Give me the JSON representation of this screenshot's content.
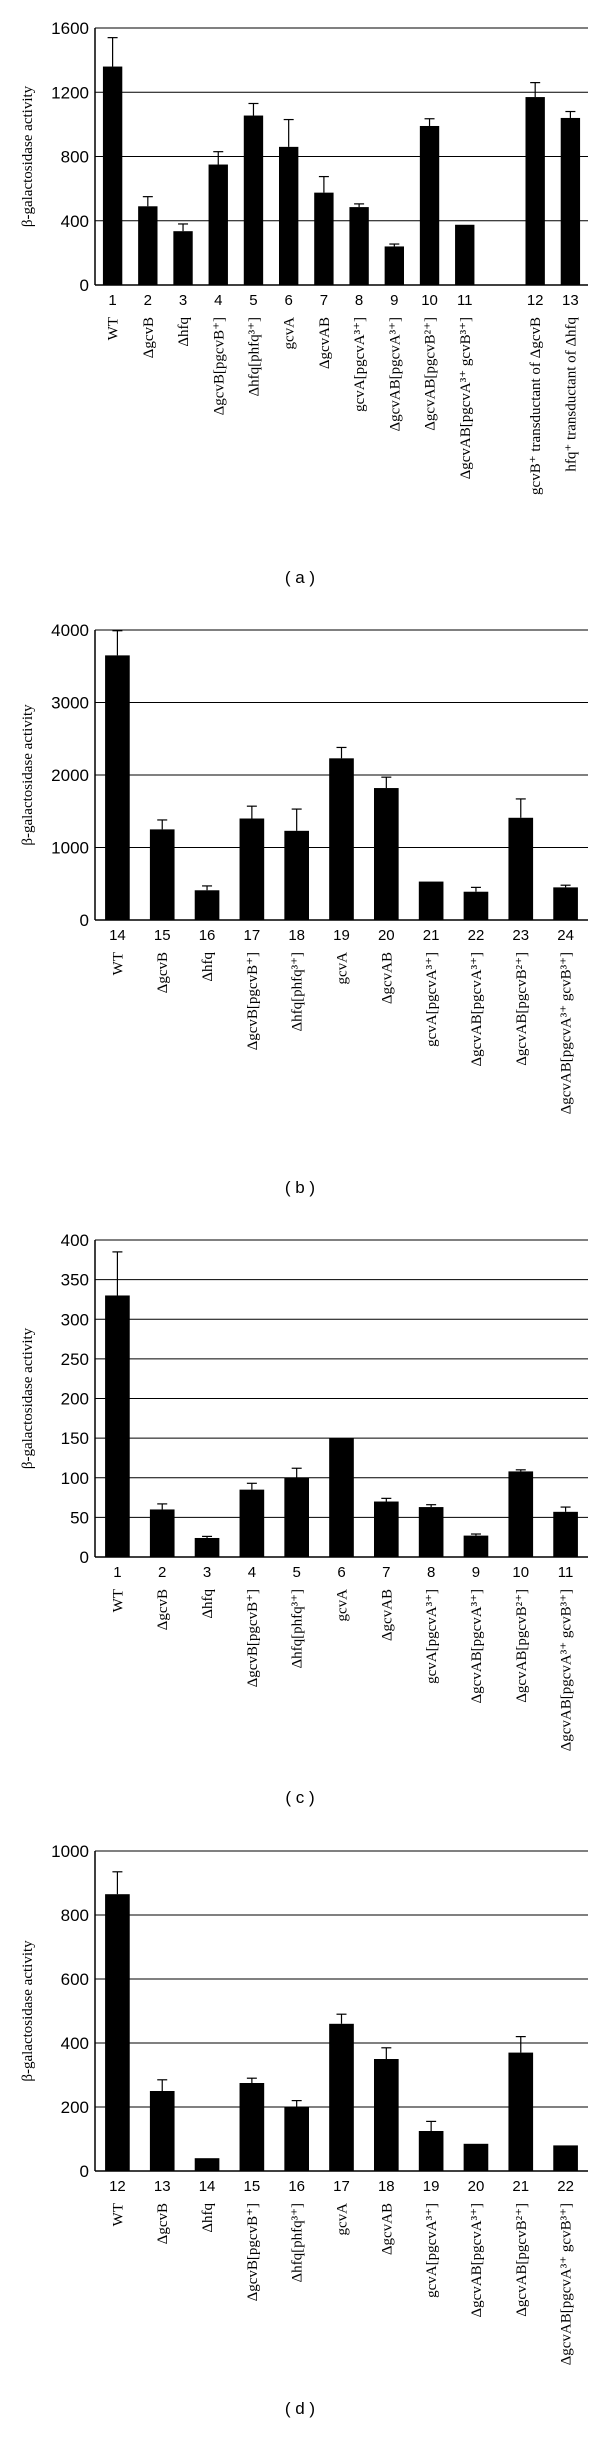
{
  "chart_data": [
    {
      "type": "bar",
      "panel_label": "( a )",
      "ylabel": "β-galactosidase activity",
      "ylim": [
        0,
        1600
      ],
      "yticks": [
        0,
        400,
        800,
        1200,
        1600
      ],
      "grid": true,
      "numbers": [
        "1",
        "2",
        "3",
        "4",
        "5",
        "6",
        "7",
        "8",
        "9",
        "10",
        "11",
        "12",
        "13"
      ],
      "categories": [
        "WT",
        "ΔgcvB",
        "Δhfq",
        "ΔgcvB[pgcvB⁺]",
        "Δhfq[phfq³⁺]",
        "gcvA",
        "ΔgcvAB",
        "gcvA[pgcvA³⁺]",
        "ΔgcvAB[pgcvA³⁺]",
        "ΔgcvAB[pgcvB²⁺]",
        "ΔgcvAB[pgcvA³⁺ gcvB³⁺]",
        "gcvB⁺ transductant of ΔgcvB",
        "hfq⁺ transductant of Δhfq"
      ],
      "values": [
        1360,
        490,
        335,
        750,
        1055,
        860,
        575,
        485,
        240,
        990,
        375,
        1170,
        1040
      ],
      "errors": [
        180,
        60,
        45,
        80,
        75,
        170,
        100,
        20,
        15,
        45,
        0,
        90,
        40
      ]
    },
    {
      "type": "bar",
      "panel_label": "( b )",
      "ylabel": "β-galactosidase activity",
      "ylim": [
        0,
        4000
      ],
      "yticks": [
        0,
        1000,
        2000,
        3000,
        4000
      ],
      "grid": true,
      "numbers": [
        "14",
        "15",
        "16",
        "17",
        "18",
        "19",
        "20",
        "21",
        "22",
        "23",
        "24"
      ],
      "categories": [
        "WT",
        "ΔgcvB",
        "Δhfq",
        "ΔgcvB[pgcvB⁺]",
        "Δhfq[phfq³⁺]",
        "gcvA",
        "ΔgcvAB",
        "gcvA[pgcvA³⁺]",
        "ΔgcvAB[pgcvA³⁺]",
        "ΔgcvAB[pgcvB²⁺]",
        "ΔgcvAB[pgcvA³⁺ gcvB³⁺]"
      ],
      "values": [
        3650,
        1250,
        410,
        1400,
        1230,
        2230,
        1820,
        530,
        390,
        1410,
        450
      ],
      "errors": [
        340,
        130,
        60,
        170,
        300,
        150,
        150,
        0,
        60,
        260,
        30
      ]
    },
    {
      "type": "bar",
      "panel_label": "( c )",
      "ylabel": "β-galactosidase activity",
      "ylim": [
        0,
        400
      ],
      "yticks": [
        0,
        50,
        100,
        150,
        200,
        250,
        300,
        350,
        400
      ],
      "grid": true,
      "numbers": [
        "1",
        "2",
        "3",
        "4",
        "5",
        "6",
        "7",
        "8",
        "9",
        "10",
        "11"
      ],
      "categories": [
        "WT",
        "ΔgcvB",
        "Δhfq",
        "ΔgcvB[pgcvB⁺]",
        "Δhfq[phfq³⁺]",
        "gcvA",
        "ΔgcvAB",
        "gcvA[pgcvA³⁺]",
        "ΔgcvAB[pgcvA³⁺]",
        "ΔgcvAB[pgcvB²⁺]",
        "ΔgcvAB[pgcvA³⁺ gcvB³⁺]"
      ],
      "values": [
        330,
        60,
        24,
        85,
        100,
        150,
        70,
        63,
        27,
        108,
        57
      ],
      "errors": [
        55,
        7,
        2,
        8,
        12,
        0,
        4,
        3,
        2,
        2,
        6
      ]
    },
    {
      "type": "bar",
      "panel_label": "( d )",
      "ylabel": "β-galactosidase activity",
      "ylim": [
        0,
        1000
      ],
      "yticks": [
        0,
        200,
        400,
        600,
        800,
        1000
      ],
      "grid": true,
      "numbers": [
        "12",
        "13",
        "14",
        "15",
        "16",
        "17",
        "18",
        "19",
        "20",
        "21",
        "22"
      ],
      "categories": [
        "WT",
        "ΔgcvB",
        "Δhfq",
        "ΔgcvB[pgcvB⁺]",
        "Δhfq[phfq³⁺]",
        "gcvA",
        "ΔgcvAB",
        "gcvA[pgcvA³⁺]",
        "ΔgcvAB[pgcvA³⁺]",
        "ΔgcvAB[pgcvB²⁺]",
        "ΔgcvAB[pgcvA³⁺ gcvB³⁺]"
      ],
      "values": [
        865,
        250,
        40,
        275,
        200,
        460,
        350,
        125,
        85,
        370,
        80
      ],
      "errors": [
        70,
        35,
        0,
        15,
        20,
        30,
        35,
        30,
        0,
        50,
        0
      ]
    }
  ]
}
